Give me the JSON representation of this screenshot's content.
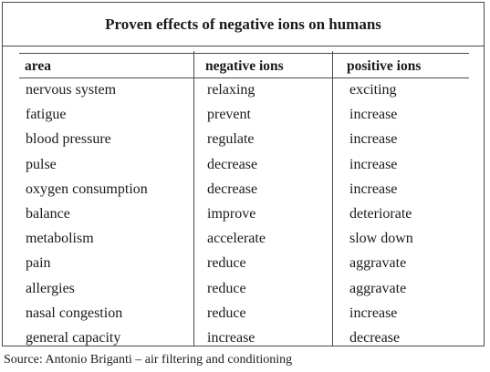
{
  "table": {
    "title": "Proven effects of negative ions on humans",
    "headers": [
      "area",
      "negative ions",
      "positive ions"
    ],
    "rows": [
      [
        "nervous system",
        "relaxing",
        "exciting"
      ],
      [
        "fatigue",
        "prevent",
        "increase"
      ],
      [
        "blood pressure",
        "regulate",
        "increase"
      ],
      [
        "pulse",
        "decrease",
        "increase"
      ],
      [
        "oxygen consumption",
        "decrease",
        "increase"
      ],
      [
        "balance",
        "improve",
        "deteriorate"
      ],
      [
        "metabolism",
        "accelerate",
        "slow down"
      ],
      [
        "pain",
        "reduce",
        "aggravate"
      ],
      [
        "allergies",
        "reduce",
        "aggravate"
      ],
      [
        "nasal congestion",
        "reduce",
        "increase"
      ],
      [
        "general capacity",
        "increase",
        "decrease"
      ]
    ]
  },
  "source": "Source: Antonio Briganti – air filtering and conditioning"
}
